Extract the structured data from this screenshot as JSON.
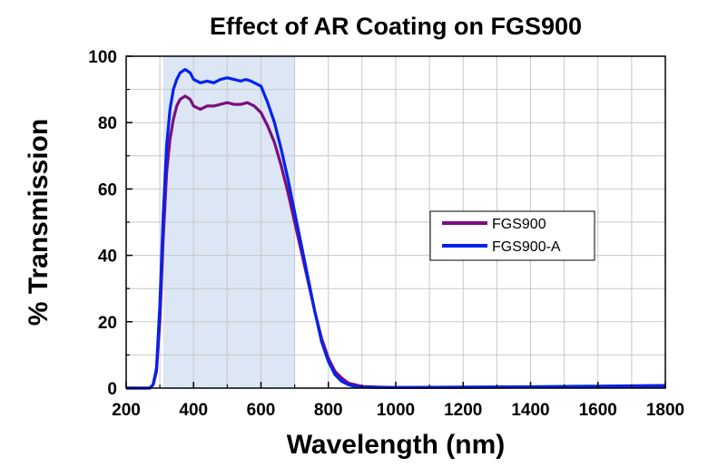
{
  "chart_data": {
    "type": "line",
    "title": "Effect of AR Coating on FGS900",
    "xlabel": "Wavelength (nm)",
    "ylabel": "% Transmission",
    "xlim": [
      200,
      1800
    ],
    "ylim": [
      0,
      100
    ],
    "xticks": [
      200,
      400,
      600,
      800,
      1000,
      1200,
      1400,
      1600,
      1800
    ],
    "yticks": [
      0,
      20,
      40,
      60,
      80,
      100
    ],
    "grid": true,
    "legend_position": "right",
    "shaded_region": {
      "x_range": [
        310,
        700
      ],
      "color": "#dce6f5"
    },
    "series": [
      {
        "name": "FGS900",
        "color": "#7b0e7e",
        "points": [
          [
            200,
            0
          ],
          [
            270,
            0
          ],
          [
            280,
            1
          ],
          [
            290,
            5
          ],
          [
            300,
            20
          ],
          [
            310,
            45
          ],
          [
            320,
            65
          ],
          [
            330,
            75
          ],
          [
            340,
            81
          ],
          [
            350,
            85
          ],
          [
            360,
            87
          ],
          [
            375,
            88
          ],
          [
            390,
            87
          ],
          [
            400,
            85
          ],
          [
            420,
            84
          ],
          [
            440,
            85
          ],
          [
            460,
            85
          ],
          [
            480,
            85.5
          ],
          [
            500,
            86
          ],
          [
            520,
            85.5
          ],
          [
            540,
            85.5
          ],
          [
            560,
            86
          ],
          [
            580,
            85
          ],
          [
            600,
            83
          ],
          [
            620,
            79
          ],
          [
            640,
            74
          ],
          [
            660,
            67
          ],
          [
            680,
            59
          ],
          [
            700,
            50
          ],
          [
            720,
            41
          ],
          [
            740,
            32
          ],
          [
            760,
            23
          ],
          [
            780,
            15
          ],
          [
            800,
            9
          ],
          [
            820,
            5
          ],
          [
            840,
            3
          ],
          [
            860,
            1.5
          ],
          [
            880,
            1
          ],
          [
            900,
            0.5
          ],
          [
            950,
            0.3
          ],
          [
            1000,
            0.2
          ],
          [
            1200,
            0.2
          ],
          [
            1400,
            0.3
          ],
          [
            1600,
            0.4
          ],
          [
            1800,
            0.5
          ]
        ]
      },
      {
        "name": "FGS900-A",
        "color": "#0022ee",
        "points": [
          [
            200,
            0
          ],
          [
            270,
            0
          ],
          [
            280,
            1
          ],
          [
            290,
            6
          ],
          [
            300,
            25
          ],
          [
            310,
            52
          ],
          [
            320,
            73
          ],
          [
            330,
            84
          ],
          [
            340,
            90
          ],
          [
            350,
            93
          ],
          [
            360,
            95
          ],
          [
            375,
            96
          ],
          [
            390,
            95
          ],
          [
            400,
            93
          ],
          [
            420,
            92
          ],
          [
            440,
            92.5
          ],
          [
            460,
            92
          ],
          [
            480,
            93
          ],
          [
            500,
            93.5
          ],
          [
            520,
            93
          ],
          [
            540,
            92.5
          ],
          [
            555,
            93
          ],
          [
            570,
            92.5
          ],
          [
            600,
            91
          ],
          [
            620,
            86
          ],
          [
            640,
            80
          ],
          [
            660,
            72
          ],
          [
            680,
            63
          ],
          [
            700,
            53
          ],
          [
            720,
            43
          ],
          [
            740,
            33
          ],
          [
            760,
            23
          ],
          [
            780,
            14
          ],
          [
            800,
            8
          ],
          [
            820,
            4
          ],
          [
            840,
            2
          ],
          [
            860,
            1
          ],
          [
            880,
            0.5
          ],
          [
            900,
            0.3
          ],
          [
            950,
            0.2
          ],
          [
            1000,
            0.2
          ],
          [
            1200,
            0.3
          ],
          [
            1400,
            0.4
          ],
          [
            1600,
            0.6
          ],
          [
            1800,
            0.8
          ]
        ]
      }
    ]
  }
}
